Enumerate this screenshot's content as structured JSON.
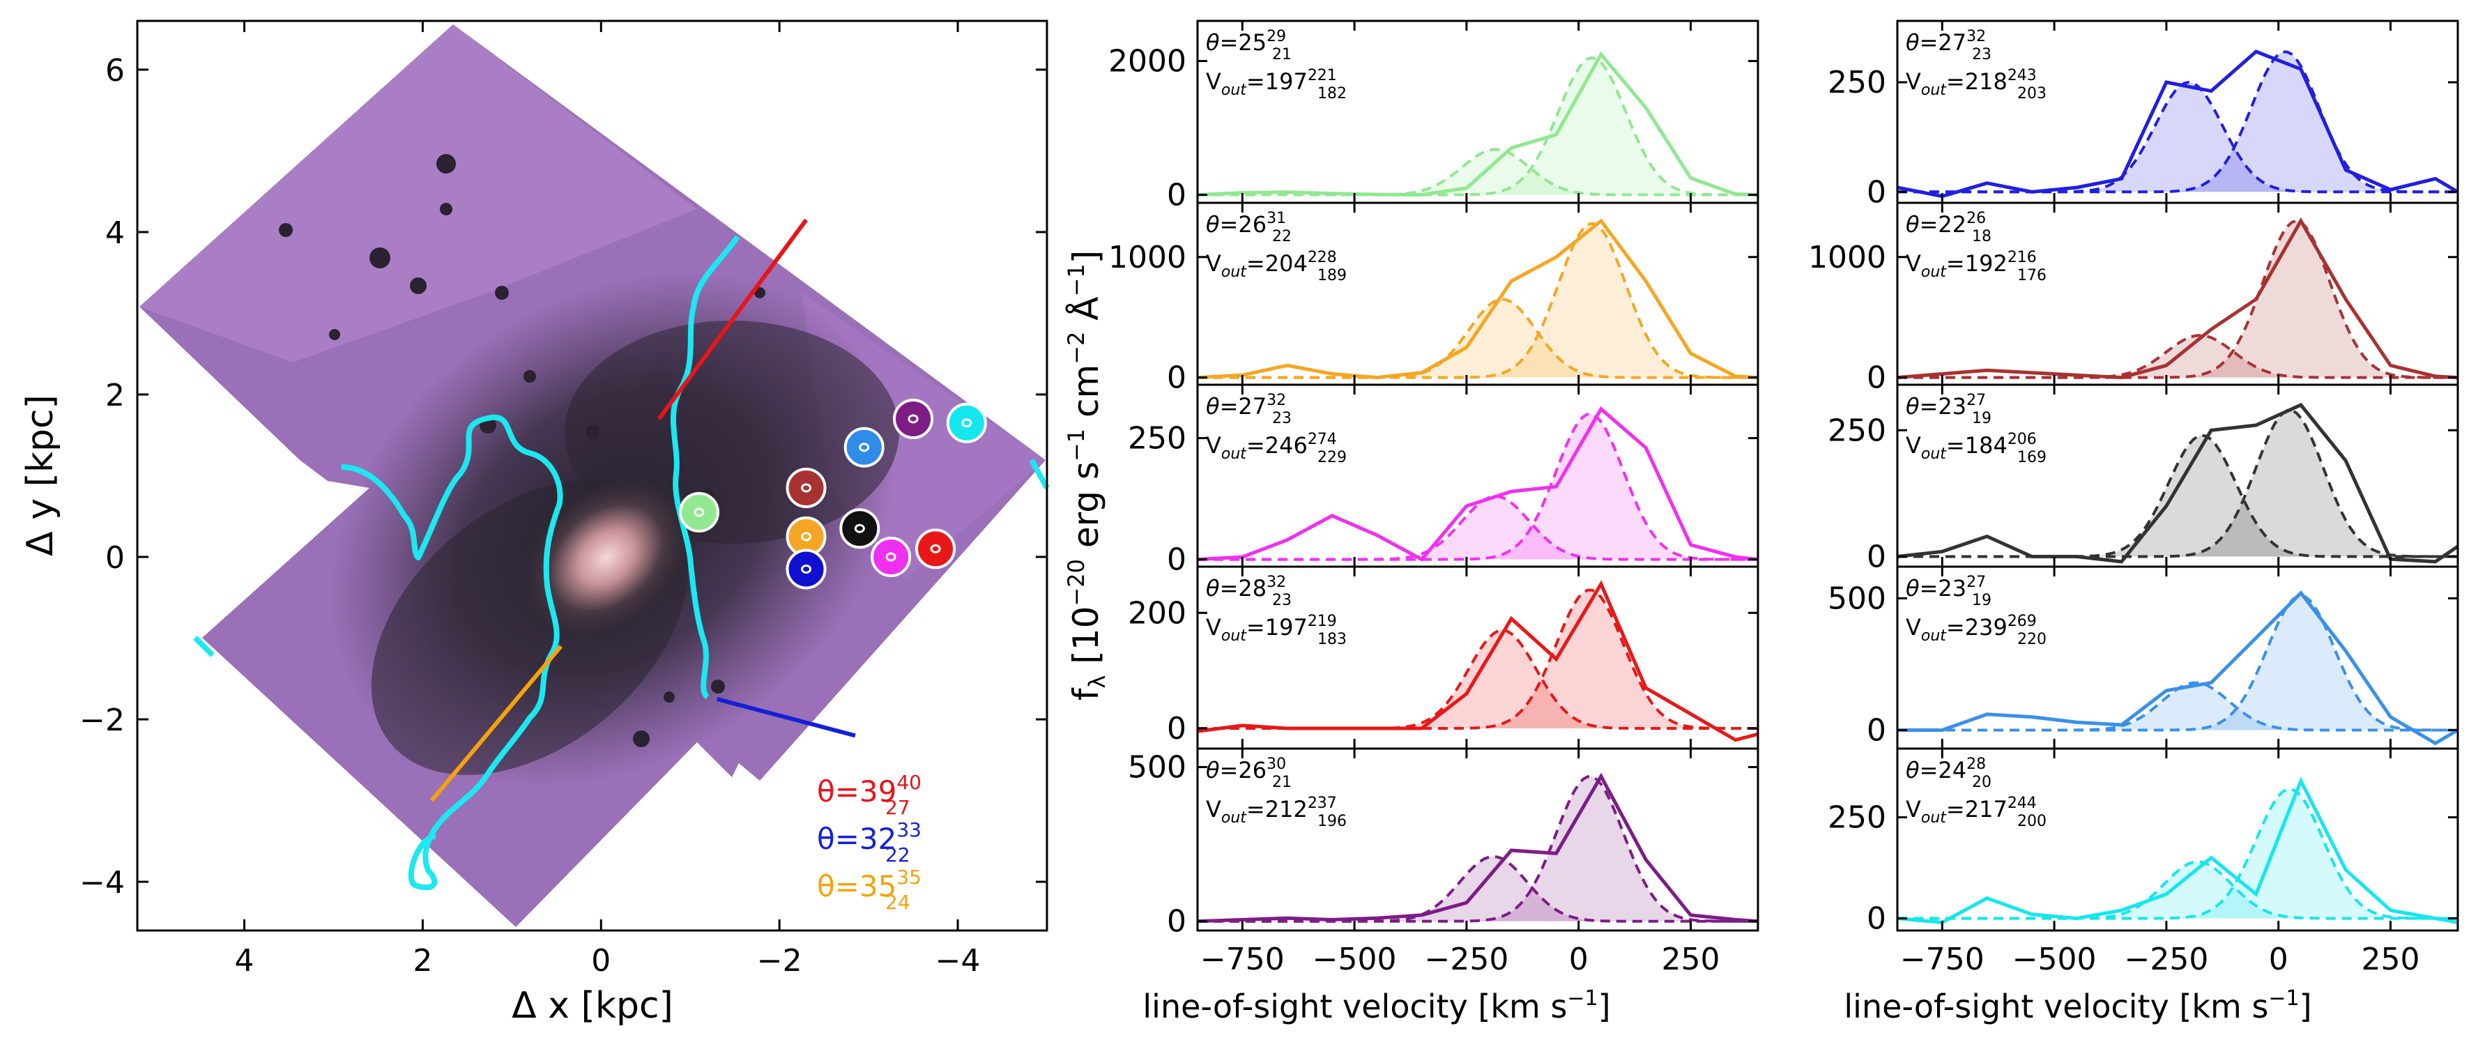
{
  "figure": {
    "map_panel": {
      "xlabel": "Δ x [kpc]",
      "ylabel": "Δ y [kpc]",
      "xlim": [
        5.2,
        -5.0
      ],
      "ylim": [
        -4.6,
        6.6
      ],
      "xticks": [
        "4",
        "2",
        "0",
        "−2",
        "−4"
      ],
      "yticks": [
        "−4",
        "−2",
        "0",
        "2",
        "4",
        "6"
      ],
      "angle_annotations": [
        {
          "label": "θ=39",
          "sup": "40",
          "sub": "27",
          "color": "#e8141a"
        },
        {
          "label": "θ=32",
          "sup": "33",
          "sub": "22",
          "color": "#1420d8"
        },
        {
          "label": "θ=35",
          "sup": "35",
          "sub": "24",
          "color": "#f5a20c"
        }
      ],
      "aperture_markers": [
        {
          "name": "green",
          "x": -1.1,
          "y": 0.55,
          "color": "#90e890"
        },
        {
          "name": "brown",
          "x": -2.3,
          "y": 0.85,
          "color": "#a83232"
        },
        {
          "name": "orange",
          "x": -2.3,
          "y": 0.25,
          "color": "#f5a623"
        },
        {
          "name": "navy",
          "x": -2.3,
          "y": -0.15,
          "color": "#1010d0"
        },
        {
          "name": "black",
          "x": -2.9,
          "y": 0.35,
          "color": "#111111"
        },
        {
          "name": "magenta",
          "x": -3.25,
          "y": 0.0,
          "color": "#f030f0"
        },
        {
          "name": "red",
          "x": -3.75,
          "y": 0.1,
          "color": "#e81818"
        },
        {
          "name": "blue",
          "x": -2.95,
          "y": 1.35,
          "color": "#2f8ce8"
        },
        {
          "name": "purple",
          "x": -3.5,
          "y": 1.7,
          "color": "#7d1c86"
        },
        {
          "name": "cyan",
          "x": -4.1,
          "y": 1.65,
          "color": "#16e6ee"
        }
      ],
      "outflow_lines": [
        {
          "color": "#e8141a",
          "x": [
            -0.65,
            -2.3
          ],
          "y": [
            1.7,
            4.15
          ]
        },
        {
          "color": "#1420d8",
          "x": [
            -1.3,
            -2.85
          ],
          "y": [
            -1.75,
            -2.2
          ]
        },
        {
          "color": "#f5a20c",
          "x": [
            1.9,
            0.45
          ],
          "y": [
            -3.0,
            -1.1
          ]
        }
      ]
    },
    "chart_data": [
      {
        "type": "line",
        "panel": "col1-row1",
        "color": "#90e890",
        "ylim": [
          -120,
          2600
        ],
        "yticks": [
          0,
          2000
        ],
        "yticklabels": [
          "0",
          "2000"
        ],
        "theta": "25",
        "theta_sup": "29",
        "theta_sub": "21",
        "vout": "197",
        "vout_sup": "221",
        "vout_sub": "182",
        "x": [
          -850,
          -750,
          -650,
          -550,
          -450,
          -350,
          -250,
          -150,
          -50,
          50,
          150,
          250,
          350,
          400
        ],
        "total": [
          0,
          30,
          40,
          20,
          5,
          0,
          100,
          700,
          900,
          2100,
          1300,
          250,
          10,
          0
        ],
        "comp1_amp": 680,
        "comp1_mu": -185,
        "comp2_amp": 2050,
        "comp2_mu": 30
      },
      {
        "type": "line",
        "panel": "col1-row2",
        "color": "#f5a623",
        "ylim": [
          -60,
          1450
        ],
        "yticks": [
          0,
          1000
        ],
        "yticklabels": [
          "0",
          "1000"
        ],
        "theta": "26",
        "theta_sup": "31",
        "theta_sub": "22",
        "vout": "204",
        "vout_sup": "228",
        "vout_sub": "189",
        "x": [
          -850,
          -750,
          -650,
          -550,
          -450,
          -350,
          -250,
          -150,
          -50,
          50,
          150,
          250,
          350,
          400
        ],
        "total": [
          0,
          20,
          100,
          30,
          0,
          40,
          250,
          800,
          1000,
          1300,
          800,
          200,
          10,
          0
        ],
        "comp1_amp": 650,
        "comp1_mu": -170,
        "comp2_amp": 1280,
        "comp2_mu": 30
      },
      {
        "type": "line",
        "panel": "col1-row3",
        "color": "#f030f0",
        "ylim": [
          -15,
          360
        ],
        "yticks": [
          0,
          250
        ],
        "yticklabels": [
          "0",
          "250"
        ],
        "theta": "27",
        "theta_sup": "32",
        "theta_sub": "23",
        "vout": "246",
        "vout_sup": "274",
        "vout_sub": "229",
        "x": [
          -850,
          -750,
          -650,
          -550,
          -450,
          -350,
          -250,
          -150,
          -50,
          50,
          150,
          250,
          350,
          400
        ],
        "total": [
          0,
          5,
          40,
          90,
          50,
          0,
          110,
          140,
          150,
          310,
          230,
          30,
          5,
          0
        ],
        "comp1_amp": 130,
        "comp1_mu": -185,
        "comp2_amp": 300,
        "comp2_mu": 25
      },
      {
        "type": "line",
        "panel": "col1-row4",
        "color": "#e81818",
        "ylim": [
          -35,
          280
        ],
        "yticks": [
          0,
          200
        ],
        "yticklabels": [
          "0",
          "200"
        ],
        "theta": "28",
        "theta_sup": "32",
        "theta_sub": "23",
        "vout": "197",
        "vout_sup": "219",
        "vout_sub": "183",
        "x": [
          -850,
          -750,
          -650,
          -550,
          -450,
          -350,
          -250,
          -150,
          -50,
          50,
          150,
          250,
          350,
          400
        ],
        "total": [
          -5,
          5,
          0,
          0,
          0,
          0,
          60,
          190,
          120,
          250,
          70,
          25,
          -20,
          -10
        ],
        "comp1_amp": 170,
        "comp1_mu": -170,
        "comp2_amp": 240,
        "comp2_mu": 25
      },
      {
        "type": "line",
        "panel": "col1-row5",
        "color": "#7d1c86",
        "ylim": [
          -30,
          560
        ],
        "yticks": [
          0,
          500
        ],
        "yticklabels": [
          "0",
          "500"
        ],
        "theta": "26",
        "theta_sup": "30",
        "theta_sub": "21",
        "vout": "212",
        "vout_sup": "237",
        "vout_sub": "196",
        "x": [
          -850,
          -750,
          -650,
          -550,
          -450,
          -350,
          -250,
          -150,
          -50,
          50,
          150,
          250,
          350,
          400
        ],
        "total": [
          0,
          5,
          10,
          5,
          10,
          20,
          60,
          230,
          220,
          470,
          200,
          20,
          5,
          0
        ],
        "comp1_amp": 210,
        "comp1_mu": -190,
        "comp2_amp": 470,
        "comp2_mu": 25
      },
      {
        "type": "line",
        "panel": "col2-row1",
        "color": "#2020e0",
        "ylim": [
          -25,
          390
        ],
        "yticks": [
          0,
          250
        ],
        "yticklabels": [
          "0",
          "250"
        ],
        "theta": "27",
        "theta_sup": "32",
        "theta_sub": "23",
        "vout": "218",
        "vout_sup": "243",
        "vout_sub": "203",
        "x": [
          -850,
          -750,
          -650,
          -550,
          -450,
          -350,
          -250,
          -150,
          -50,
          50,
          150,
          250,
          350,
          400
        ],
        "total": [
          10,
          -10,
          20,
          0,
          10,
          30,
          250,
          230,
          320,
          280,
          50,
          5,
          30,
          0
        ],
        "comp1_amp": 250,
        "comp1_mu": -200,
        "comp2_amp": 320,
        "comp2_mu": 15
      },
      {
        "type": "line",
        "panel": "col2-row2",
        "color": "#a83232",
        "ylim": [
          -60,
          1450
        ],
        "yticks": [
          0,
          1000
        ],
        "yticklabels": [
          "0",
          "1000"
        ],
        "theta": "22",
        "theta_sup": "26",
        "theta_sub": "18",
        "vout": "192",
        "vout_sup": "216",
        "vout_sub": "176",
        "x": [
          -850,
          -750,
          -650,
          -550,
          -450,
          -350,
          -250,
          -150,
          -50,
          50,
          150,
          250,
          350,
          400
        ],
        "total": [
          0,
          30,
          60,
          40,
          20,
          0,
          100,
          400,
          650,
          1300,
          650,
          100,
          10,
          0
        ],
        "comp1_amp": 350,
        "comp1_mu": -175,
        "comp2_amp": 1300,
        "comp2_mu": 40
      },
      {
        "type": "line",
        "panel": "col2-row3",
        "color": "#333333",
        "ylim": [
          -20,
          340
        ],
        "yticks": [
          0,
          250
        ],
        "yticklabels": [
          "0",
          "250"
        ],
        "theta": "23",
        "theta_sup": "27",
        "theta_sub": "19",
        "vout": "184",
        "vout_sup": "206",
        "vout_sub": "169",
        "x": [
          -850,
          -750,
          -650,
          -550,
          -450,
          -350,
          -250,
          -150,
          -50,
          50,
          150,
          250,
          350,
          400
        ],
        "total": [
          0,
          10,
          40,
          0,
          0,
          -10,
          100,
          250,
          260,
          300,
          190,
          -5,
          -10,
          20
        ],
        "comp1_amp": 240,
        "comp1_mu": -170,
        "comp2_amp": 290,
        "comp2_mu": 25
      },
      {
        "type": "line",
        "panel": "col2-row4",
        "color": "#3a90e8",
        "ylim": [
          -70,
          620
        ],
        "yticks": [
          0,
          500
        ],
        "yticklabels": [
          "0",
          "500"
        ],
        "theta": "23",
        "theta_sup": "27",
        "theta_sub": "19",
        "vout": "239",
        "vout_sup": "269",
        "vout_sub": "220",
        "x": [
          -850,
          -750,
          -650,
          -550,
          -450,
          -350,
          -250,
          -150,
          -50,
          50,
          150,
          250,
          350,
          400
        ],
        "total": [
          0,
          0,
          60,
          50,
          30,
          20,
          150,
          180,
          350,
          520,
          300,
          50,
          -50,
          0
        ],
        "comp1_amp": 180,
        "comp1_mu": -185,
        "comp2_amp": 510,
        "comp2_mu": 50
      },
      {
        "type": "line",
        "panel": "col2-row5",
        "color": "#16e6ee",
        "ylim": [
          -30,
          420
        ],
        "yticks": [
          0,
          250
        ],
        "yticklabels": [
          "0",
          "250"
        ],
        "theta": "24",
        "theta_sup": "28",
        "theta_sub": "20",
        "vout": "217",
        "vout_sup": "244",
        "vout_sub": "200",
        "x": [
          -850,
          -750,
          -650,
          -550,
          -450,
          -350,
          -250,
          -150,
          -50,
          50,
          150,
          250,
          350,
          400
        ],
        "total": [
          0,
          -10,
          50,
          10,
          0,
          20,
          60,
          150,
          60,
          340,
          120,
          20,
          0,
          -10
        ],
        "comp1_amp": 140,
        "comp1_mu": -180,
        "comp2_amp": 320,
        "comp2_mu": 25
      }
    ],
    "spectra_common": {
      "xlim": [
        -850,
        400
      ],
      "xticks": [
        -750,
        -500,
        -250,
        0,
        250
      ],
      "xticklabels": [
        "−750",
        "−500",
        "−250",
        "0",
        "250"
      ],
      "xlabel": "line-of-sight velocity [km s⁻¹]",
      "ylabel": "f_λ [10⁻²⁰ erg s⁻¹ cm⁻² Å⁻¹]",
      "theta_prefix": "θ=",
      "vout_prefix": "V",
      "vout_subscript": "out",
      "vout_eq": "="
    }
  }
}
